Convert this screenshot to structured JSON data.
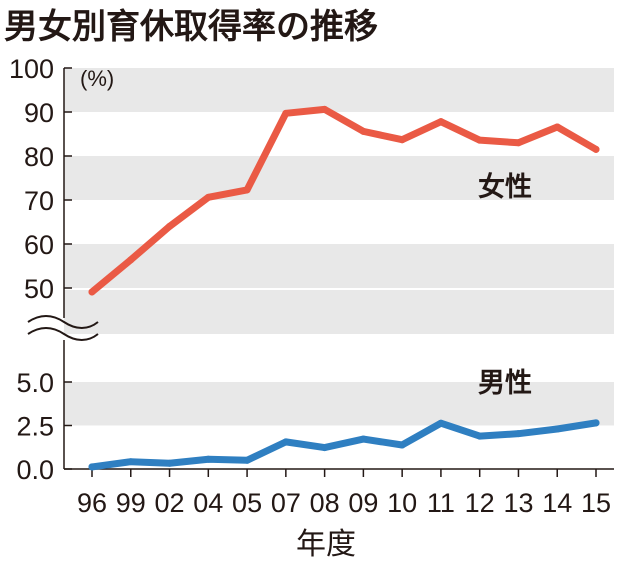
{
  "chart_data": {
    "type": "line",
    "title": "男女別育休取得率の推移",
    "unit": "(%)",
    "xlabel": "年度",
    "categories": [
      "96",
      "99",
      "02",
      "04",
      "05",
      "07",
      "08",
      "09",
      "10",
      "11",
      "12",
      "13",
      "14",
      "15"
    ],
    "series": [
      {
        "name": "女性",
        "color": "#ea5a45",
        "values": [
          49.1,
          56.4,
          64.0,
          70.6,
          72.3,
          89.7,
          90.6,
          85.6,
          83.7,
          87.8,
          83.6,
          83.0,
          86.6,
          81.5
        ]
      },
      {
        "name": "男性",
        "color": "#2f7fc1",
        "values": [
          0.12,
          0.42,
          0.33,
          0.56,
          0.5,
          1.56,
          1.23,
          1.72,
          1.38,
          2.63,
          1.89,
          2.03,
          2.3,
          2.65
        ]
      }
    ],
    "upper_axis": {
      "ticks": [
        "100",
        "90",
        "80",
        "70",
        "60",
        "50"
      ],
      "ylim": [
        50,
        100
      ]
    },
    "lower_axis": {
      "ticks": [
        "5.0",
        "2.5",
        "0.0"
      ],
      "ylim": [
        0,
        5
      ]
    },
    "axis_break": true,
    "grid": "alternating-bands",
    "band_color": "#e8e8e8"
  }
}
